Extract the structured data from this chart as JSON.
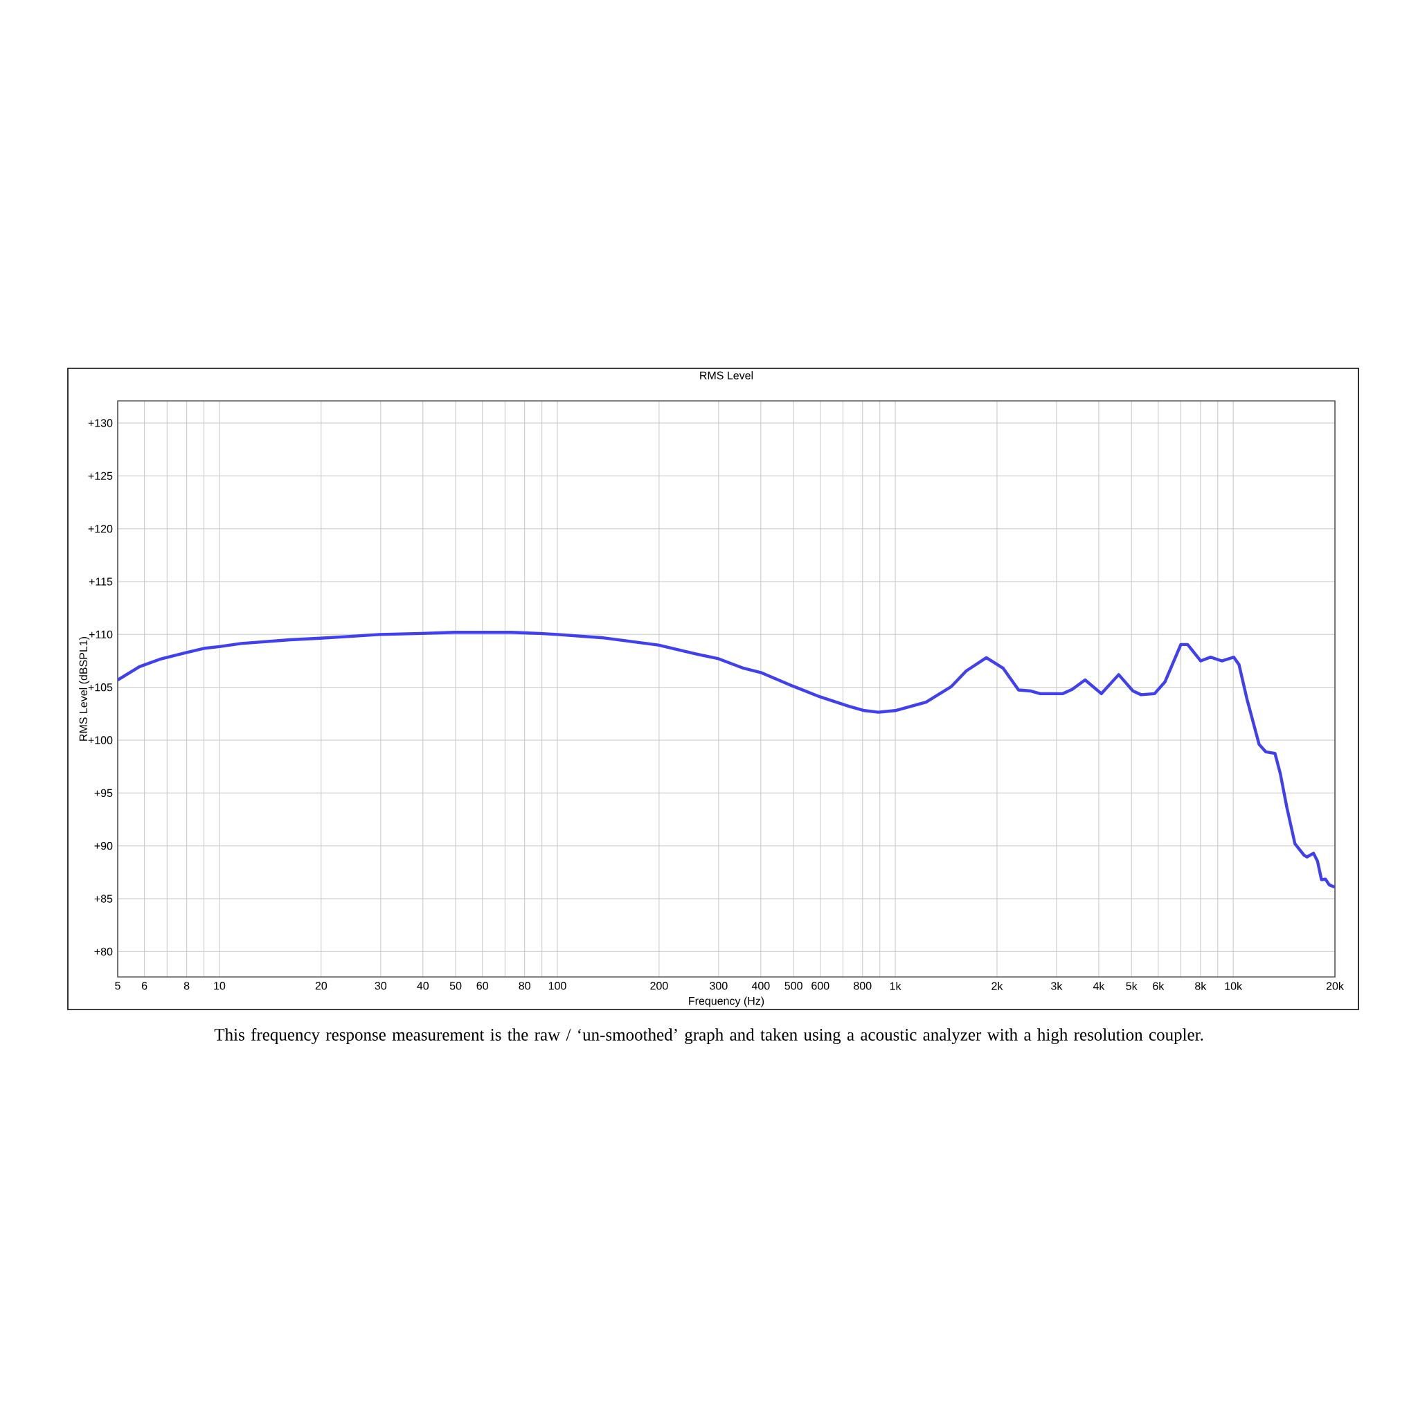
{
  "chart_data": {
    "type": "line",
    "title": "RMS Level",
    "xlabel": "Frequency (Hz)",
    "ylabel": "RMS Level (dBSPL1)",
    "annotations": [
      "This frequency response measurement is the raw / ‘un-smoothed’ graph and taken using a acoustic analyzer with a high resolution coupler."
    ],
    "log": "x",
    "grid": true,
    "xlim": [
      5,
      20000
    ],
    "ylim": [
      77.6,
      132.1
    ],
    "xticks": [
      5,
      6,
      {
        "value": 7,
        "label": null
      },
      8,
      {
        "value": 9,
        "label": null
      },
      10,
      20,
      30,
      40,
      50,
      60,
      {
        "value": 70,
        "label": null
      },
      80,
      {
        "value": 90,
        "label": null
      },
      100,
      200,
      300,
      400,
      500,
      600,
      {
        "value": 700,
        "label": null
      },
      800,
      {
        "value": 900,
        "label": null
      },
      {
        "value": 1000,
        "label": "1k"
      },
      {
        "value": 2000,
        "label": "2k"
      },
      {
        "value": 3000,
        "label": "3k"
      },
      {
        "value": 4000,
        "label": "4k"
      },
      {
        "value": 5000,
        "label": "5k"
      },
      {
        "value": 6000,
        "label": "6k"
      },
      {
        "value": 7000,
        "label": null
      },
      {
        "value": 8000,
        "label": "8k"
      },
      {
        "value": 9000,
        "label": null
      },
      {
        "value": 10000,
        "label": "10k"
      },
      {
        "value": 20000,
        "label": "20k"
      }
    ],
    "yticks": [
      {
        "value": 80,
        "label": "+80"
      },
      {
        "value": 85,
        "label": "+85"
      },
      {
        "value": 90,
        "label": "+90"
      },
      {
        "value": 95,
        "label": "+95"
      },
      {
        "value": 100,
        "label": "+100"
      },
      {
        "value": 105,
        "label": "+105"
      },
      {
        "value": 110,
        "label": "+110"
      },
      {
        "value": 115,
        "label": "+115"
      },
      {
        "value": 120,
        "label": "+120"
      },
      {
        "value": 125,
        "label": "+125"
      },
      {
        "value": 130,
        "label": "+130"
      }
    ],
    "x": [
      5,
      5.8,
      6.66,
      8,
      9.06,
      10,
      11.6,
      16.2,
      19.9,
      25.3,
      29.8,
      39.6,
      49.5,
      73,
      88.7,
      100,
      135,
      199,
      254,
      300,
      356,
      400,
      499,
      599,
      730,
      810,
      891,
      1000,
      1233,
      1462,
      1622,
      1860,
      2086,
      2316,
      2520,
      2684,
      3131,
      3336,
      3645,
      4073,
      4582,
      5051,
      5340,
      5850,
      6277,
      6999,
      7330,
      8015,
      8568,
      9250,
      10040,
      10400,
      10980,
      11930,
      12480,
      13290,
      13780,
      14420,
      15230,
      16220,
      16520,
      17280,
      17760,
      18250,
      18750,
      19260,
      20000
    ],
    "series": [
      {
        "color": "#4040f0",
        "values": [
          105.7,
          106.95,
          107.65,
          108.3,
          108.7,
          108.85,
          109.15,
          109.5,
          109.65,
          109.85,
          110.0,
          110.1,
          110.2,
          110.2,
          110.1,
          110.0,
          109.7,
          109.0,
          108.2,
          107.7,
          106.8,
          106.4,
          105.1,
          104.1,
          103.2,
          102.8,
          102.65,
          102.8,
          103.6,
          105.05,
          106.55,
          107.8,
          106.8,
          104.75,
          104.65,
          104.4,
          104.4,
          104.8,
          105.7,
          104.4,
          106.2,
          104.65,
          104.3,
          104.4,
          105.5,
          109.05,
          109.05,
          107.5,
          107.85,
          107.5,
          107.85,
          107.15,
          103.9,
          99.6,
          98.9,
          98.75,
          96.85,
          93.6,
          90.2,
          89.1,
          88.95,
          89.3,
          88.55,
          86.8,
          86.85,
          86.3,
          86.1
        ]
      }
    ]
  }
}
